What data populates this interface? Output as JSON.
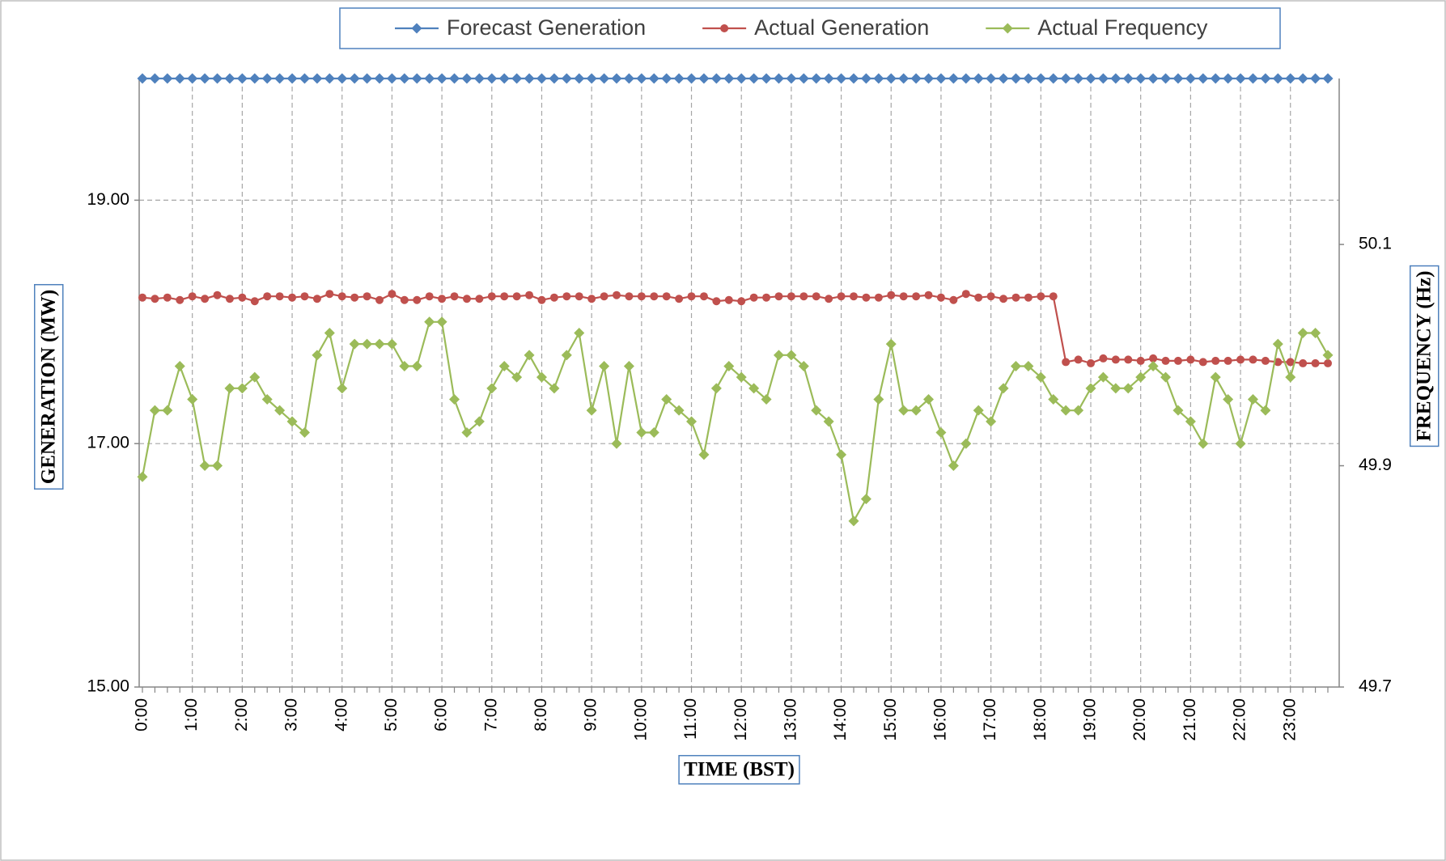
{
  "chart_data": {
    "type": "line",
    "x_label": "TIME (BST)",
    "y_label": "GENERATION (MW)",
    "y2_label": "FREQUENCY (Hz)",
    "categories": [
      "0:00",
      null,
      null,
      null,
      "1:00",
      null,
      null,
      null,
      "2:00",
      null,
      null,
      null,
      "3:00",
      null,
      null,
      null,
      "4:00",
      null,
      null,
      null,
      "5:00",
      null,
      null,
      null,
      "6:00",
      null,
      null,
      null,
      "7:00",
      null,
      null,
      null,
      "8:00",
      null,
      null,
      null,
      "9:00",
      null,
      null,
      null,
      "10:00",
      null,
      null,
      null,
      "11:00",
      null,
      null,
      null,
      "12:00",
      null,
      null,
      null,
      "13:00",
      null,
      null,
      null,
      "14:00",
      null,
      null,
      null,
      "15:00",
      null,
      null,
      null,
      "16:00",
      null,
      null,
      null,
      "17:00",
      null,
      null,
      null,
      "18:00",
      null,
      null,
      null,
      "19:00",
      null,
      null,
      null,
      "20:00",
      null,
      null,
      null,
      "21:00",
      null,
      null,
      null,
      "22:00",
      null,
      null,
      null,
      "23:00",
      null,
      null,
      null
    ],
    "ylim": [
      15,
      20
    ],
    "yticks": [
      {
        "value": 15,
        "label": "15.00"
      },
      {
        "value": 17,
        "label": "17.00"
      },
      {
        "value": 19,
        "label": "19.00"
      }
    ],
    "y2lim": [
      49.7,
      50.25
    ],
    "y2ticks": [
      49.7,
      49.9,
      50.1
    ],
    "grid": true,
    "legend": "top",
    "series": [
      {
        "name": "Forecast Generation",
        "color": "#4f81bd",
        "marker": "diamond",
        "values": [
          20,
          20,
          20,
          20,
          20,
          20,
          20,
          20,
          20,
          20,
          20,
          20,
          20,
          20,
          20,
          20,
          20,
          20,
          20,
          20,
          20,
          20,
          20,
          20,
          20,
          20,
          20,
          20,
          20,
          20,
          20,
          20,
          20,
          20,
          20,
          20,
          20,
          20,
          20,
          20,
          20,
          20,
          20,
          20,
          20,
          20,
          20,
          20,
          20,
          20,
          20,
          20,
          20,
          20,
          20,
          20,
          20,
          20,
          20,
          20,
          20,
          20,
          20,
          20,
          20,
          20,
          20,
          20,
          20,
          20,
          20,
          20,
          20,
          20,
          20,
          20,
          20,
          20,
          20,
          20,
          20,
          20,
          20,
          20,
          20,
          20,
          20,
          20,
          20,
          20,
          20,
          20,
          20,
          20,
          20,
          20
        ]
      },
      {
        "name": "Actual Generation",
        "color": "#c0504d",
        "marker": "circle",
        "values": [
          18.2,
          18.19,
          18.2,
          18.18,
          18.21,
          18.19,
          18.22,
          18.19,
          18.2,
          18.17,
          18.21,
          18.21,
          18.2,
          18.21,
          18.19,
          18.23,
          18.21,
          18.2,
          18.21,
          18.18,
          18.23,
          18.18,
          18.18,
          18.21,
          18.19,
          18.21,
          18.19,
          18.19,
          18.21,
          18.21,
          18.21,
          18.22,
          18.18,
          18.2,
          18.21,
          18.21,
          18.19,
          18.21,
          18.22,
          18.21,
          18.21,
          18.21,
          18.21,
          18.19,
          18.21,
          18.21,
          18.17,
          18.18,
          18.17,
          18.2,
          18.2,
          18.21,
          18.21,
          18.21,
          18.21,
          18.19,
          18.21,
          18.21,
          18.2,
          18.2,
          18.22,
          18.21,
          18.21,
          18.22,
          18.2,
          18.18,
          18.23,
          18.2,
          18.21,
          18.19,
          18.2,
          18.2,
          18.21,
          18.21,
          17.67,
          17.69,
          17.66,
          17.7,
          17.69,
          17.69,
          17.68,
          17.7,
          17.68,
          17.68,
          17.69,
          17.67,
          17.68,
          17.68,
          17.69,
          17.69,
          17.68,
          17.67,
          17.67,
          17.66,
          17.66,
          17.66
        ]
      },
      {
        "name": "Actual Frequency",
        "color": "#9bbb59",
        "marker": "diamond",
        "axis": "y2",
        "values": [
          49.89,
          49.95,
          49.95,
          49.99,
          49.96,
          49.9,
          49.9,
          49.97,
          49.97,
          49.98,
          49.96,
          49.95,
          49.94,
          49.93,
          50.0,
          50.02,
          49.97,
          50.01,
          50.01,
          50.01,
          50.01,
          49.99,
          49.99,
          50.03,
          50.03,
          49.96,
          49.93,
          49.94,
          49.97,
          49.99,
          49.98,
          50.0,
          49.98,
          49.97,
          50.0,
          50.02,
          49.95,
          49.99,
          49.92,
          49.99,
          49.93,
          49.93,
          49.96,
          49.95,
          49.94,
          49.91,
          49.97,
          49.99,
          49.98,
          49.97,
          49.96,
          50.0,
          50.0,
          49.99,
          49.95,
          49.94,
          49.91,
          49.85,
          49.87,
          49.96,
          50.01,
          49.95,
          49.95,
          49.96,
          49.93,
          49.9,
          49.92,
          49.95,
          49.94,
          49.97,
          49.99,
          49.99,
          49.98,
          49.96,
          49.95,
          49.95,
          49.97,
          49.98,
          49.97,
          49.97,
          49.98,
          49.99,
          49.98,
          49.95,
          49.94,
          49.92,
          49.98,
          49.96,
          49.92,
          49.96,
          49.95,
          50.01,
          49.98,
          50.02,
          50.02,
          50.0
        ]
      }
    ]
  }
}
